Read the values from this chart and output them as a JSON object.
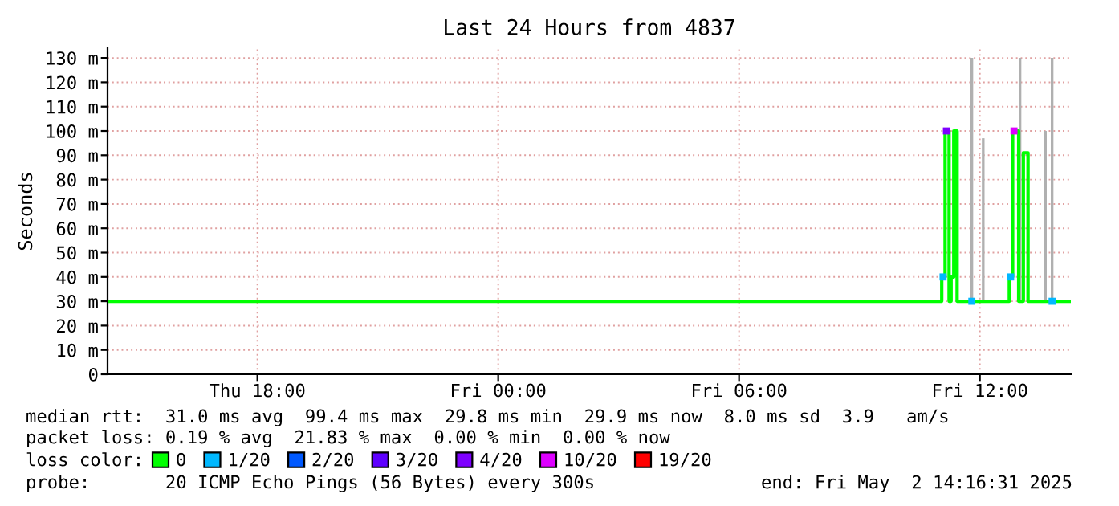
{
  "chart_data": {
    "type": "step",
    "title": "Last 24 Hours from 4837",
    "ylabel": "Seconds",
    "x": [
      "2025-05-01T14:16",
      "2025-05-02T11:03",
      "2025-05-02T11:08",
      "2025-05-02T11:14",
      "2025-05-02T11:17",
      "2025-05-02T11:21",
      "2025-05-02T11:26",
      "2025-05-02T12:44",
      "2025-05-02T12:49",
      "2025-05-02T12:58",
      "2025-05-02T13:05",
      "2025-05-02T13:12",
      "2025-05-02T14:16"
    ],
    "series": [
      {
        "name": "0",
        "color": "#00ff00",
        "values": [
          30,
          40,
          100,
          30,
          40,
          100,
          30,
          40,
          100,
          30,
          91,
          30,
          30
        ]
      },
      {
        "type": "bar",
        "color": "#b0b0b0",
        "x": [
          "2025-05-02T11:48",
          "2025-05-02T12:05",
          "2025-05-02T13:00",
          "2025-05-02T13:38",
          "2025-05-02T13:48"
        ],
        "base": [
          30,
          30,
          30,
          30,
          30
        ],
        "values": [
          100,
          67,
          100,
          70,
          100
        ]
      },
      {
        "name": "1/20",
        "type": "scatter",
        "marker": "square",
        "color": "#00b8ff",
        "x": [
          "2025-05-02T11:05",
          "2025-05-02T11:48",
          "2025-05-02T12:46",
          "2025-05-02T13:48"
        ],
        "values": [
          40,
          30,
          40,
          30
        ]
      },
      {
        "name": "2/20",
        "type": "scatter",
        "color": "#0059ff",
        "values": [
          null,
          null,
          null,
          null,
          null,
          null,
          null,
          null,
          null,
          null,
          null,
          null,
          null
        ]
      },
      {
        "name": "3/20",
        "type": "scatter",
        "color": "#5e00ff",
        "values": [
          null,
          null,
          null,
          null,
          null,
          null,
          null,
          null,
          null,
          null,
          null,
          null,
          null
        ]
      },
      {
        "name": "4/20",
        "type": "scatter",
        "marker": "square",
        "color": "#7e00ff",
        "x": [
          "2025-05-02T11:10"
        ],
        "values": [
          100
        ]
      },
      {
        "name": "10/20",
        "type": "scatter",
        "marker": "square",
        "color": "#dd00ff",
        "x": [
          "2025-05-02T12:51"
        ],
        "values": [
          100
        ]
      },
      {
        "name": "19/20",
        "type": "scatter",
        "color": "#ff0000",
        "values": [
          null,
          null,
          null,
          null,
          null,
          null,
          null,
          null,
          null,
          null,
          null,
          null,
          null
        ]
      }
    ],
    "xlim": [
      "2025-05-01T14:16",
      "2025-05-02T14:16"
    ],
    "xticks": [
      {
        "value": "2025-05-01T18:00",
        "label": "Thu 18:00"
      },
      {
        "value": "2025-05-02T00:00",
        "label": "Fri 00:00"
      },
      {
        "value": "2025-05-02T06:00",
        "label": "Fri 06:00"
      },
      {
        "value": "2025-05-02T12:00",
        "label": "Fri 12:00"
      }
    ],
    "ylim": [
      0,
      134
    ],
    "yticks": [
      0,
      {
        "value": 10,
        "label": "10 m"
      },
      {
        "value": 20,
        "label": "20 m"
      },
      {
        "value": 30,
        "label": "30 m"
      },
      {
        "value": 40,
        "label": "40 m"
      },
      {
        "value": 50,
        "label": "50 m"
      },
      {
        "value": 60,
        "label": "60 m"
      },
      {
        "value": 70,
        "label": "70 m"
      },
      {
        "value": 80,
        "label": "80 m"
      },
      {
        "value": 90,
        "label": "90 m"
      },
      {
        "value": 100,
        "label": "100 m"
      },
      {
        "value": 110,
        "label": "110 m"
      },
      {
        "value": 120,
        "label": "120 m"
      },
      {
        "value": 130,
        "label": "130 m"
      }
    ],
    "grid": true,
    "legend": "bottom",
    "legend_title": "loss color:",
    "annotations": [
      "median rtt:  31.0 ms avg  99.4 ms max  29.8 ms min  29.9 ms now  8.0 ms sd  3.9   am/s",
      "packet loss: 0.19 % avg  21.83 % max  0.00 % min  0.00 % now",
      "probe:       20 ICMP Echo Pings (56 Bytes) every 300s",
      "end: Fri May  2 14:16:31 2025"
    ]
  }
}
